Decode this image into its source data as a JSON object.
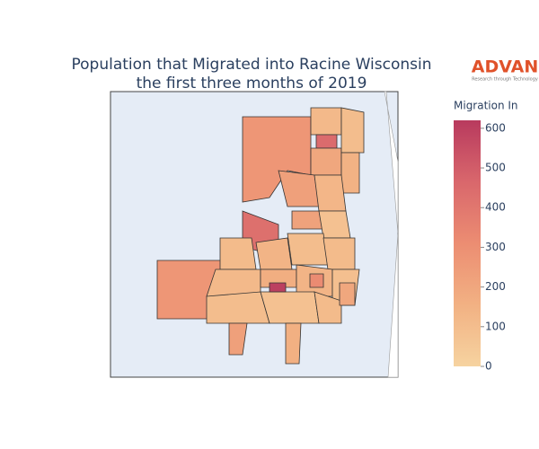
{
  "chart_data": {
    "type": "choropleth",
    "title": [
      "Population that Migrated into Racine Wisconsin",
      "the first three months of 2019"
    ],
    "logo": "ADVAN",
    "logo_tagline": "Research through Technology",
    "colorbar_title": "Migration In",
    "colorscale": [
      "#f6d3a0",
      "#f2b183",
      "#ec8d72",
      "#d9676c",
      "#b83a5e"
    ],
    "zlim": [
      0,
      620
    ],
    "zticks": [
      0,
      100,
      200,
      300,
      400,
      500,
      600
    ],
    "values": [
      270,
      120,
      450,
      200,
      100,
      150,
      230,
      130,
      220,
      430,
      80,
      270,
      110,
      140,
      100,
      110,
      120,
      170,
      140,
      600,
      90,
      100,
      80,
      110,
      200,
      230,
      160,
      320
    ]
  }
}
